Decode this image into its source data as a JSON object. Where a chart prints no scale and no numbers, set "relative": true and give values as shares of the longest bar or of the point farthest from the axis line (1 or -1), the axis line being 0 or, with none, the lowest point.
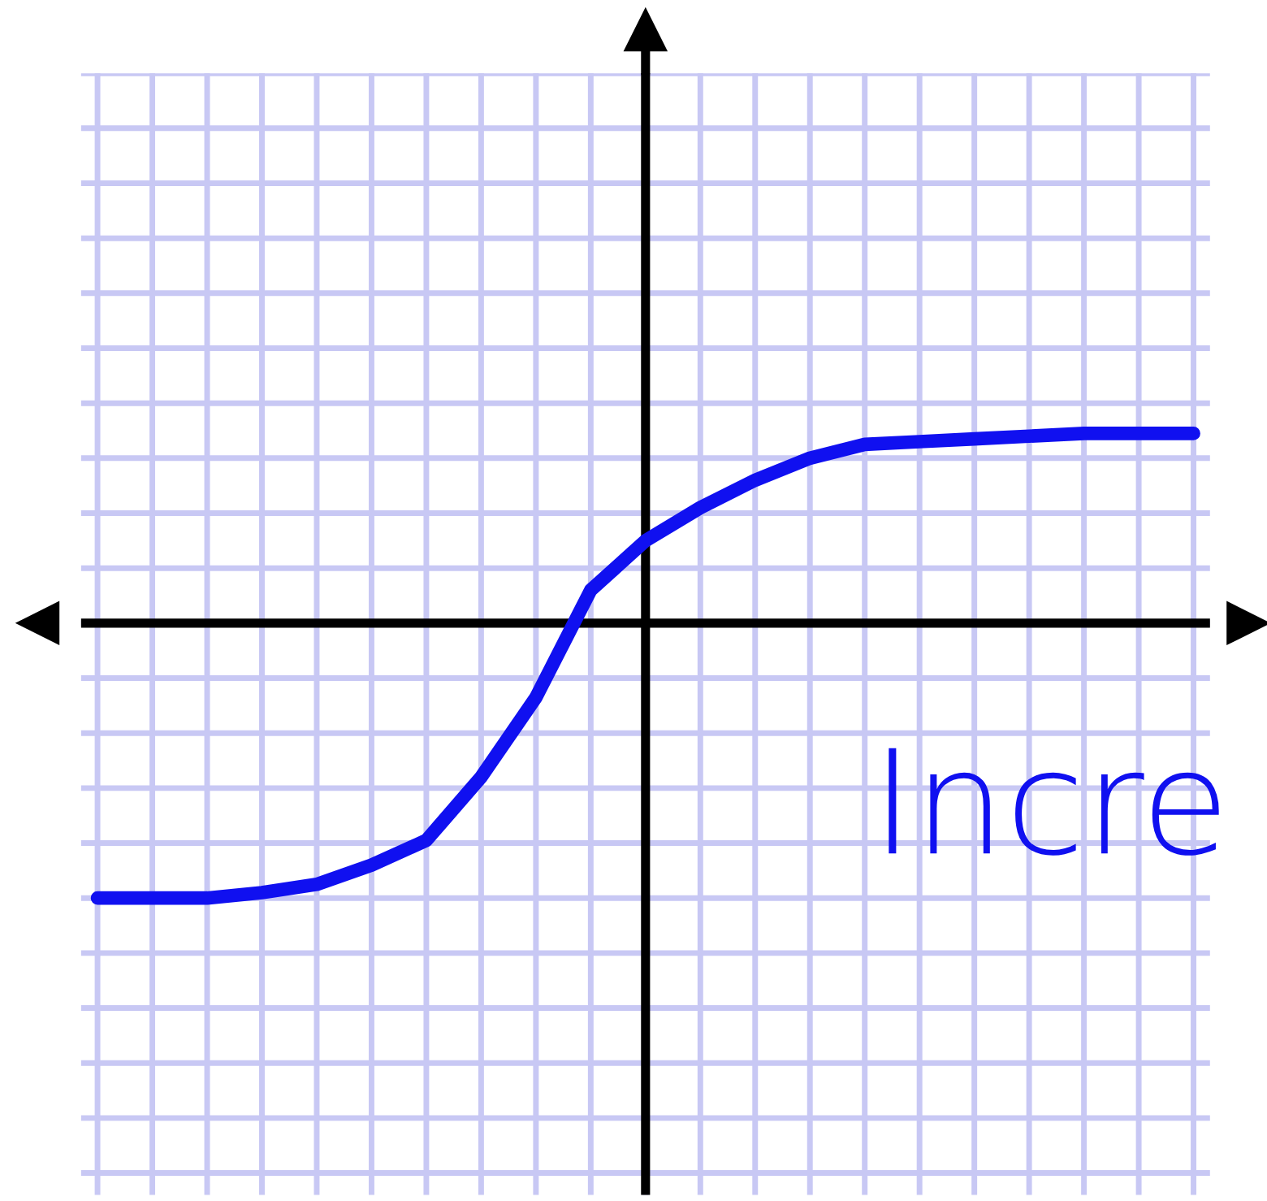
{
  "chart_data": {
    "type": "line",
    "relative": true,
    "categories": [
      null,
      null,
      null,
      null,
      null,
      null,
      null,
      null,
      null,
      null,
      null,
      null,
      null,
      null,
      null,
      null,
      null,
      null,
      null,
      null,
      null
    ],
    "series": [
      {
        "color": "#1010f0",
        "values": [
          -1.0,
          -1.0,
          -1.0,
          -0.98,
          -0.95,
          -0.88,
          -0.79,
          -0.56,
          -0.27,
          0.12,
          0.3,
          0.42,
          0.52,
          0.6,
          0.65,
          0.66,
          0.67,
          0.68,
          0.69,
          0.69,
          0.69
        ]
      }
    ],
    "annotations": [
      "Incre"
    ],
    "grid": true,
    "marker": "none",
    "line_style": "solid",
    "legend": false
  }
}
